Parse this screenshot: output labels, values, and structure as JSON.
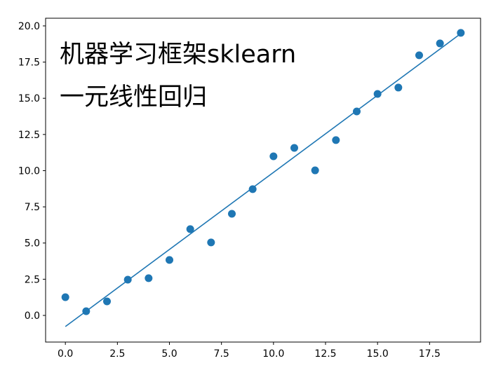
{
  "chart_data": {
    "type": "scatter",
    "annotations": [
      "机器学习框架sklearn",
      "一元线性回归"
    ],
    "annotation_color": "#e8262a",
    "x": [
      0,
      1,
      2,
      3,
      4,
      5,
      6,
      7,
      8,
      9,
      10,
      11,
      12,
      13,
      14,
      15,
      16,
      17,
      18,
      19
    ],
    "series": [
      {
        "type": "scatter",
        "color": "#1f77b4",
        "values": [
          1.26,
          0.29,
          0.97,
          2.47,
          2.57,
          3.83,
          5.96,
          5.04,
          7.02,
          8.72,
          10.99,
          11.57,
          10.02,
          12.11,
          14.09,
          15.3,
          15.74,
          17.97,
          18.79,
          19.52
        ]
      },
      {
        "type": "line",
        "color": "#1f77b4",
        "x": [
          0,
          19
        ],
        "values": [
          -0.77,
          19.47
        ]
      }
    ],
    "xlim": [
      -0.95,
      19.95
    ],
    "ylim": [
      -1.84,
      20.53
    ],
    "xticks": [
      {
        "value": 0,
        "label": "0.0"
      },
      2.5,
      {
        "value": 5,
        "label": "5.0"
      },
      7.5,
      {
        "value": 10,
        "label": "10.0"
      },
      12.5,
      {
        "value": 15,
        "label": "15.0"
      },
      17.5
    ],
    "yticks": [
      {
        "value": 0,
        "label": "0.0"
      },
      2.5,
      {
        "value": 5,
        "label": "5.0"
      },
      7.5,
      {
        "value": 10,
        "label": "10.0"
      },
      12.5,
      {
        "value": 15,
        "label": "15.0"
      },
      17.5,
      {
        "value": 20,
        "label": "20.0"
      }
    ]
  }
}
